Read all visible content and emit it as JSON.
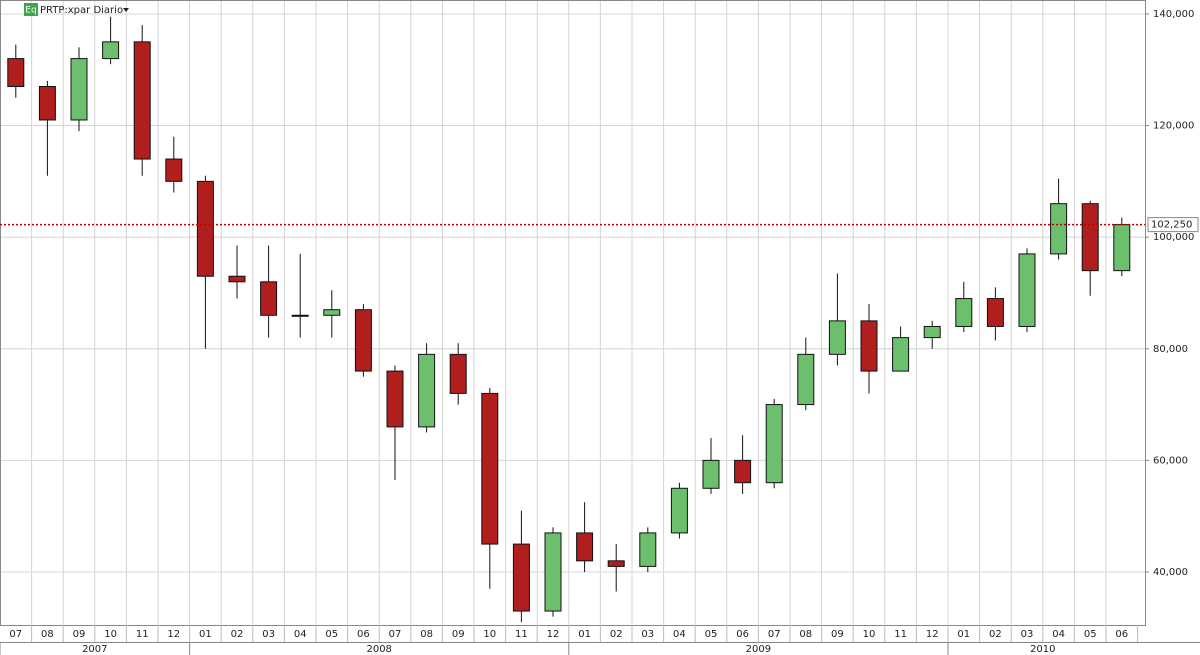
{
  "chart_data": {
    "type": "candlestick",
    "title": "PRTP:xpar Diario",
    "badge": "Eq",
    "categories": [
      "07",
      "08",
      "09",
      "10",
      "11",
      "12",
      "01",
      "02",
      "03",
      "04",
      "05",
      "06",
      "07",
      "08",
      "09",
      "10",
      "11",
      "12",
      "01",
      "02",
      "03",
      "04",
      "05",
      "06",
      "07",
      "08",
      "09",
      "10",
      "11",
      "12",
      "01",
      "02",
      "03",
      "04",
      "05",
      "06"
    ],
    "years": [
      "2007",
      "2008",
      "2009",
      "2010"
    ],
    "open": [
      132000,
      127000,
      121000,
      132000,
      135000,
      114000,
      110000,
      93000,
      92000,
      86000,
      86000,
      87000,
      76000,
      66000,
      79000,
      72000,
      45000,
      33000,
      47000,
      42000,
      41000,
      47000,
      55000,
      60000,
      56000,
      70000,
      79000,
      85000,
      76000,
      82000,
      84000,
      89000,
      84000,
      97000,
      106000,
      94000
    ],
    "high": [
      134500,
      128000,
      134000,
      139500,
      138000,
      118000,
      111000,
      98500,
      98500,
      97000,
      90500,
      88000,
      77000,
      81000,
      81000,
      73000,
      51000,
      48000,
      52500,
      45000,
      48000,
      56000,
      64000,
      64500,
      71000,
      82000,
      93500,
      88000,
      84000,
      85000,
      92000,
      91000,
      98000,
      110500,
      106500,
      103500
    ],
    "low": [
      125000,
      111000,
      119000,
      131000,
      111000,
      108000,
      80000,
      89000,
      82000,
      82000,
      82000,
      75000,
      56500,
      65000,
      70000,
      37000,
      31000,
      32000,
      40000,
      36500,
      40000,
      46000,
      54000,
      54000,
      55000,
      69000,
      77000,
      72000,
      76000,
      80000,
      83000,
      81500,
      83000,
      96000,
      89500,
      93000
    ],
    "close": [
      127000,
      121000,
      132000,
      135000,
      114000,
      110000,
      93000,
      92000,
      86000,
      86000,
      87000,
      76000,
      66000,
      79000,
      72000,
      45000,
      33000,
      47000,
      42000,
      41000,
      47000,
      55000,
      60000,
      56000,
      70000,
      79000,
      85000,
      76000,
      82000,
      84000,
      89000,
      84000,
      97000,
      106000,
      94000,
      102250
    ],
    "up_color": "#6cbf6c",
    "down_color": "#b01e1e",
    "last_price": {
      "value": 102250,
      "label": "102,250"
    },
    "last_price_color": "#c00000",
    "ylim": [
      30500,
      142500
    ],
    "yticks": [
      {
        "value": 40000,
        "label": "40,000"
      },
      {
        "value": 60000,
        "label": "60,000"
      },
      {
        "value": 80000,
        "label": "80,000"
      },
      {
        "value": 100000,
        "label": "100,000"
      },
      {
        "value": 120000,
        "label": "120,000"
      },
      {
        "value": 140000,
        "label": "140,000"
      }
    ],
    "grid": true
  }
}
